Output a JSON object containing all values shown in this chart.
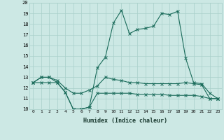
{
  "xlabel": "Humidex (Indice chaleur)",
  "x": [
    0,
    1,
    2,
    3,
    4,
    5,
    6,
    7,
    8,
    9,
    10,
    11,
    12,
    13,
    14,
    15,
    16,
    17,
    18,
    19,
    20,
    21,
    22,
    23
  ],
  "curve1": [
    12.5,
    13.0,
    13.0,
    12.5,
    11.6,
    10.0,
    10.0,
    10.2,
    13.9,
    14.9,
    18.1,
    19.3,
    17.1,
    17.5,
    17.6,
    17.8,
    19.0,
    18.9,
    19.2,
    14.8,
    12.5,
    12.4,
    11.5,
    11.0
  ],
  "curve2": [
    12.5,
    13.0,
    13.0,
    12.7,
    12.0,
    11.5,
    11.5,
    11.8,
    12.2,
    13.0,
    12.8,
    12.7,
    12.5,
    12.5,
    12.4,
    12.4,
    12.4,
    12.4,
    12.4,
    12.5,
    12.4,
    12.3,
    11.0,
    11.0
  ],
  "curve3": [
    12.5,
    12.5,
    12.5,
    12.5,
    11.6,
    10.0,
    10.0,
    10.2,
    11.5,
    11.5,
    11.5,
    11.5,
    11.5,
    11.4,
    11.4,
    11.4,
    11.4,
    11.3,
    11.3,
    11.3,
    11.3,
    11.2,
    11.0,
    11.0
  ],
  "color": "#1a6b5a",
  "bg_color": "#cce8e4",
  "grid_color": "#a8cfc9",
  "ylim": [
    10,
    20
  ],
  "yticks": [
    10,
    11,
    12,
    13,
    14,
    15,
    16,
    17,
    18,
    19,
    20
  ],
  "xticks": [
    0,
    1,
    2,
    3,
    4,
    5,
    6,
    7,
    8,
    9,
    10,
    11,
    12,
    13,
    14,
    15,
    16,
    17,
    18,
    19,
    20,
    21,
    22,
    23
  ]
}
